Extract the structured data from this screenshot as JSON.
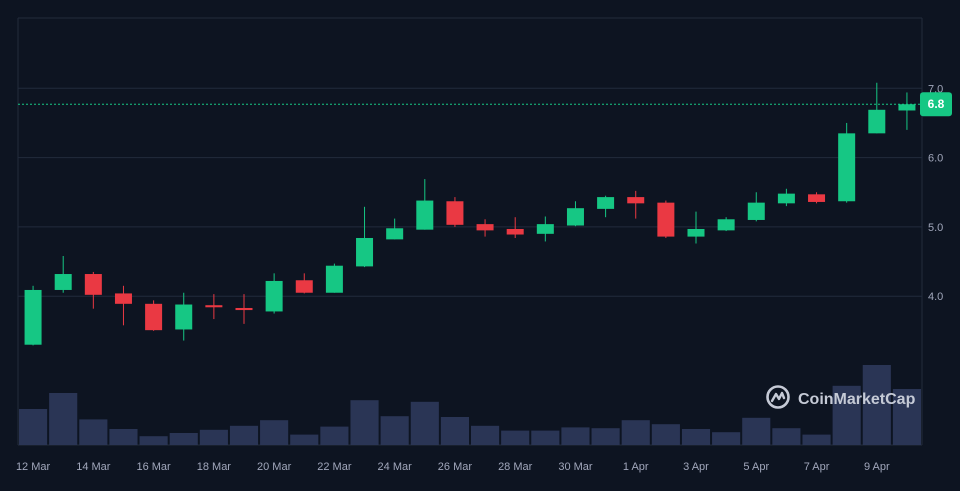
{
  "chart_data": {
    "type": "candlestick",
    "title": "",
    "xlabel": "",
    "ylabel": "",
    "ylim": [
      3.0,
      7.25
    ],
    "y_ticks": [
      "4.0",
      "5.0",
      "6.0",
      "7.0"
    ],
    "x_ticks": [
      "12 Mar",
      "14 Mar",
      "16 Mar",
      "18 Mar",
      "20 Mar",
      "22 Mar",
      "24 Mar",
      "26 Mar",
      "28 Mar",
      "30 Mar",
      "1 Apr",
      "3 Apr",
      "5 Apr",
      "7 Apr",
      "9 Apr"
    ],
    "current_price": 6.77,
    "current_price_label": "6.8",
    "grid": true,
    "candles": [
      {
        "date": "12 Mar",
        "open": 3.3,
        "high": 4.15,
        "low": 3.29,
        "close": 4.09
      },
      {
        "date": "13 Mar",
        "open": 4.09,
        "high": 4.58,
        "low": 4.05,
        "close": 4.32
      },
      {
        "date": "14 Mar",
        "open": 4.32,
        "high": 4.35,
        "low": 3.82,
        "close": 4.02
      },
      {
        "date": "15 Mar",
        "open": 4.04,
        "high": 4.15,
        "low": 3.58,
        "close": 3.89
      },
      {
        "date": "16 Mar",
        "open": 3.89,
        "high": 3.94,
        "low": 3.5,
        "close": 3.51
      },
      {
        "date": "17 Mar",
        "open": 3.52,
        "high": 4.05,
        "low": 3.36,
        "close": 3.88
      },
      {
        "date": "18 Mar",
        "open": 3.87,
        "high": 4.03,
        "low": 3.67,
        "close": 3.84
      },
      {
        "date": "19 Mar",
        "open": 3.83,
        "high": 4.03,
        "low": 3.6,
        "close": 3.8
      },
      {
        "date": "20 Mar",
        "open": 3.78,
        "high": 4.33,
        "low": 3.75,
        "close": 4.22
      },
      {
        "date": "21 Mar",
        "open": 4.23,
        "high": 4.33,
        "low": 4.04,
        "close": 4.05
      },
      {
        "date": "22 Mar",
        "open": 4.05,
        "high": 4.47,
        "low": 4.05,
        "close": 4.44
      },
      {
        "date": "23 Mar",
        "open": 4.43,
        "high": 5.29,
        "low": 4.42,
        "close": 4.84
      },
      {
        "date": "24 Mar",
        "open": 4.82,
        "high": 5.12,
        "low": 4.82,
        "close": 4.98
      },
      {
        "date": "25 Mar",
        "open": 4.96,
        "high": 5.69,
        "low": 4.96,
        "close": 5.38
      },
      {
        "date": "26 Mar",
        "open": 5.37,
        "high": 5.43,
        "low": 5.0,
        "close": 5.03
      },
      {
        "date": "27 Mar",
        "open": 5.04,
        "high": 5.11,
        "low": 4.86,
        "close": 4.95
      },
      {
        "date": "28 Mar",
        "open": 4.97,
        "high": 5.14,
        "low": 4.84,
        "close": 4.89
      },
      {
        "date": "29 Mar",
        "open": 4.9,
        "high": 5.15,
        "low": 4.79,
        "close": 5.04
      },
      {
        "date": "30 Mar",
        "open": 5.02,
        "high": 5.37,
        "low": 5.01,
        "close": 5.27
      },
      {
        "date": "31 Mar",
        "open": 5.26,
        "high": 5.45,
        "low": 5.14,
        "close": 5.43
      },
      {
        "date": "1 Apr",
        "open": 5.43,
        "high": 5.52,
        "low": 5.12,
        "close": 5.34
      },
      {
        "date": "2 Apr",
        "open": 5.35,
        "high": 5.38,
        "low": 4.84,
        "close": 4.86
      },
      {
        "date": "3 Apr",
        "open": 4.86,
        "high": 5.22,
        "low": 4.76,
        "close": 4.97
      },
      {
        "date": "4 Apr",
        "open": 4.95,
        "high": 5.14,
        "low": 4.94,
        "close": 5.11
      },
      {
        "date": "5 Apr",
        "open": 5.1,
        "high": 5.5,
        "low": 5.08,
        "close": 5.35
      },
      {
        "date": "6 Apr",
        "open": 5.34,
        "high": 5.55,
        "low": 5.3,
        "close": 5.48
      },
      {
        "date": "7 Apr",
        "open": 5.47,
        "high": 5.5,
        "low": 5.34,
        "close": 5.36
      },
      {
        "date": "8 Apr",
        "open": 5.37,
        "high": 6.5,
        "low": 5.35,
        "close": 6.35
      },
      {
        "date": "9 Apr",
        "open": 6.35,
        "high": 7.08,
        "low": 6.35,
        "close": 6.69
      },
      {
        "date": "10 Apr",
        "open": 6.68,
        "high": 6.94,
        "low": 6.4,
        "close": 6.77
      }
    ],
    "volume": [
      0.45,
      0.65,
      0.32,
      0.2,
      0.11,
      0.15,
      0.19,
      0.24,
      0.31,
      0.13,
      0.23,
      0.56,
      0.36,
      0.54,
      0.35,
      0.24,
      0.18,
      0.18,
      0.22,
      0.21,
      0.31,
      0.26,
      0.2,
      0.16,
      0.34,
      0.21,
      0.13,
      0.74,
      1.0,
      0.7
    ]
  },
  "colors": {
    "background": "#0d1421",
    "grid": "#222b3c",
    "up": "#16c784",
    "down": "#ea3943",
    "volume": "#2a3555",
    "axis_text": "#a1a7bb",
    "price_line": "#16c784"
  },
  "watermark": {
    "text": "CoinMarketCap",
    "icon": "coinmarketcap-logo-icon"
  }
}
